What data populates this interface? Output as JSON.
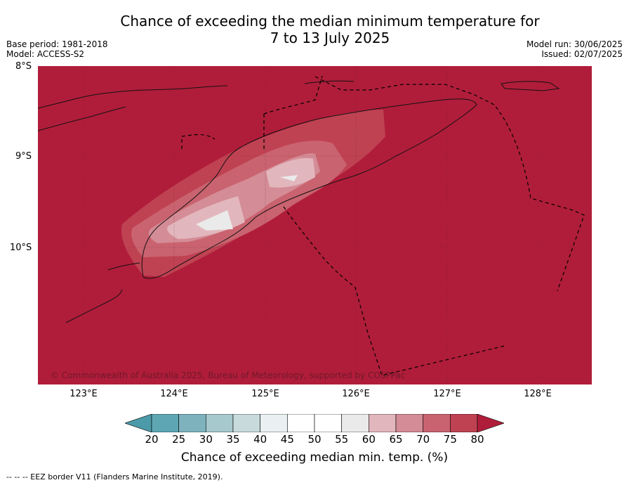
{
  "title_line1": "Chance of exceeding the median minimum temperature for",
  "title_line2": "7 to 13 July 2025",
  "base_period": "Base period: 1981-2018",
  "model": "Model: ACCESS-S2",
  "model_run": "Model run: 30/06/2025",
  "issued": "Issued: 02/07/2025",
  "lat_labels": [
    "8°S",
    "9°S",
    "10°S"
  ],
  "lon_labels": [
    "123°E",
    "124°E",
    "125°E",
    "126°E",
    "127°E",
    "128°E"
  ],
  "copyright": "© Commonwealth of Australia 2025, Bureau of Meteorology, supported by COSPPac",
  "colorbar": {
    "label": "Chance of exceeding median min. temp. (%)",
    "ticks": [
      "20",
      "25",
      "30",
      "35",
      "40",
      "45",
      "50",
      "55",
      "60",
      "65",
      "70",
      "75",
      "80"
    ],
    "colors": [
      "#5ea6b4",
      "#7eb3be",
      "#a6c9ce",
      "#c9dadd",
      "#eaf0f1",
      "#ffffff",
      "#ffffff",
      "#eaeaea",
      "#e2b6bd",
      "#d48c96",
      "#c9636f",
      "#bf4252"
    ],
    "under_color": "#4b9aa9",
    "over_color": "#b01d3a"
  },
  "footnote": "--  --  -- EEZ border V11 (Flanders Marine Institute, 2019)."
}
